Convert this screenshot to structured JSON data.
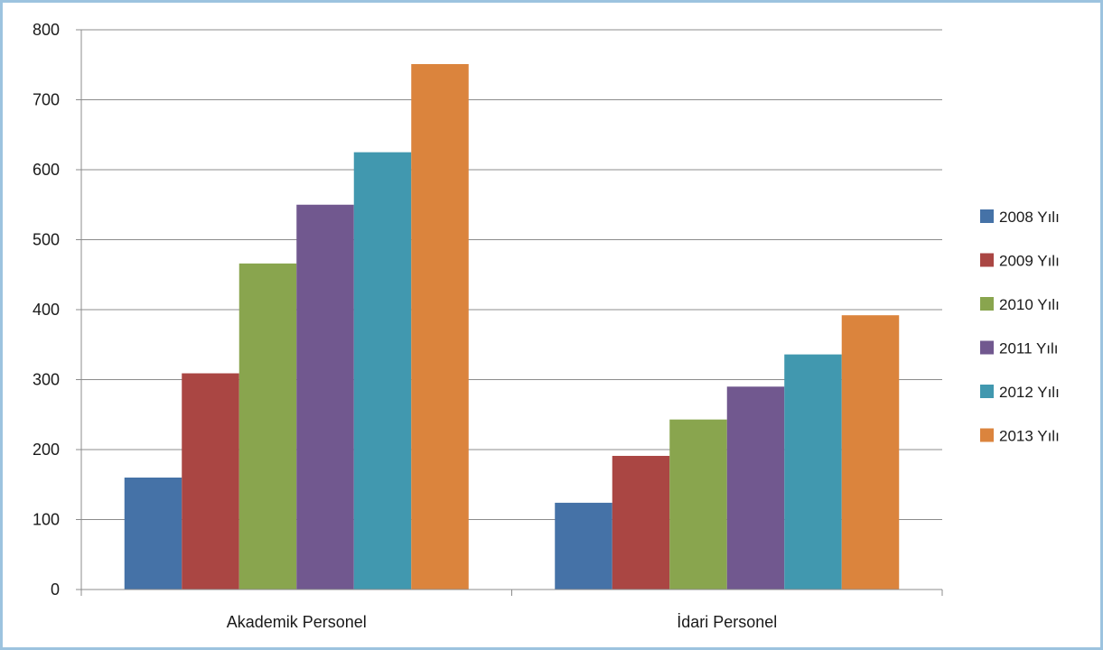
{
  "chart_data": {
    "type": "bar",
    "title": "",
    "xlabel": "",
    "ylabel": "",
    "ylim": [
      0,
      800
    ],
    "yticks": [
      0,
      100,
      200,
      300,
      400,
      500,
      600,
      700,
      800
    ],
    "grid": true,
    "legend_position": "right",
    "categories": [
      "Akademik Personel",
      "İdari Personel"
    ],
    "series": [
      {
        "name": "2008 Yılı",
        "color": "#4572a7",
        "values": [
          160,
          124
        ]
      },
      {
        "name": "2009 Yılı",
        "color": "#aa4643",
        "values": [
          309,
          191
        ]
      },
      {
        "name": "2010 Yılı",
        "color": "#89a54e",
        "values": [
          466,
          243
        ]
      },
      {
        "name": "2011 Yılı",
        "color": "#71588f",
        "values": [
          550,
          290
        ]
      },
      {
        "name": "2012 Yılı",
        "color": "#4198af",
        "values": [
          625,
          336
        ]
      },
      {
        "name": "2013 Yılı",
        "color": "#db843d",
        "values": [
          751,
          392
        ]
      }
    ]
  }
}
